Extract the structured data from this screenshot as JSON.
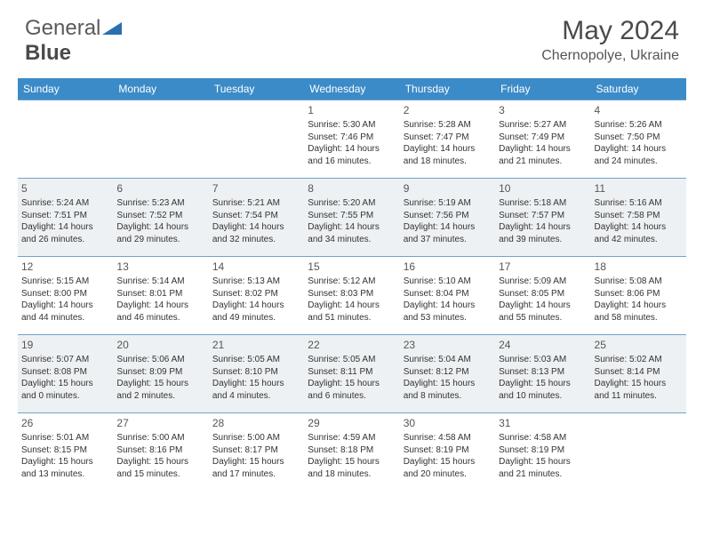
{
  "brand": {
    "part1": "General",
    "part2": "Blue"
  },
  "title": "May 2024",
  "location": "Chernopolye, Ukraine",
  "colors": {
    "header_bg": "#3b8bc8",
    "row_alt_bg": "#eef1f3",
    "border": "#6fa3c9",
    "logo_accent": "#2a6fb0"
  },
  "weekdays": [
    "Sunday",
    "Monday",
    "Tuesday",
    "Wednesday",
    "Thursday",
    "Friday",
    "Saturday"
  ],
  "weeks": [
    {
      "alt": false,
      "days": [
        null,
        null,
        null,
        {
          "n": "1",
          "sr": "Sunrise: 5:30 AM",
          "ss": "Sunset: 7:46 PM",
          "dl": "Daylight: 14 hours and 16 minutes."
        },
        {
          "n": "2",
          "sr": "Sunrise: 5:28 AM",
          "ss": "Sunset: 7:47 PM",
          "dl": "Daylight: 14 hours and 18 minutes."
        },
        {
          "n": "3",
          "sr": "Sunrise: 5:27 AM",
          "ss": "Sunset: 7:49 PM",
          "dl": "Daylight: 14 hours and 21 minutes."
        },
        {
          "n": "4",
          "sr": "Sunrise: 5:26 AM",
          "ss": "Sunset: 7:50 PM",
          "dl": "Daylight: 14 hours and 24 minutes."
        }
      ]
    },
    {
      "alt": true,
      "days": [
        {
          "n": "5",
          "sr": "Sunrise: 5:24 AM",
          "ss": "Sunset: 7:51 PM",
          "dl": "Daylight: 14 hours and 26 minutes."
        },
        {
          "n": "6",
          "sr": "Sunrise: 5:23 AM",
          "ss": "Sunset: 7:52 PM",
          "dl": "Daylight: 14 hours and 29 minutes."
        },
        {
          "n": "7",
          "sr": "Sunrise: 5:21 AM",
          "ss": "Sunset: 7:54 PM",
          "dl": "Daylight: 14 hours and 32 minutes."
        },
        {
          "n": "8",
          "sr": "Sunrise: 5:20 AM",
          "ss": "Sunset: 7:55 PM",
          "dl": "Daylight: 14 hours and 34 minutes."
        },
        {
          "n": "9",
          "sr": "Sunrise: 5:19 AM",
          "ss": "Sunset: 7:56 PM",
          "dl": "Daylight: 14 hours and 37 minutes."
        },
        {
          "n": "10",
          "sr": "Sunrise: 5:18 AM",
          "ss": "Sunset: 7:57 PM",
          "dl": "Daylight: 14 hours and 39 minutes."
        },
        {
          "n": "11",
          "sr": "Sunrise: 5:16 AM",
          "ss": "Sunset: 7:58 PM",
          "dl": "Daylight: 14 hours and 42 minutes."
        }
      ]
    },
    {
      "alt": false,
      "days": [
        {
          "n": "12",
          "sr": "Sunrise: 5:15 AM",
          "ss": "Sunset: 8:00 PM",
          "dl": "Daylight: 14 hours and 44 minutes."
        },
        {
          "n": "13",
          "sr": "Sunrise: 5:14 AM",
          "ss": "Sunset: 8:01 PM",
          "dl": "Daylight: 14 hours and 46 minutes."
        },
        {
          "n": "14",
          "sr": "Sunrise: 5:13 AM",
          "ss": "Sunset: 8:02 PM",
          "dl": "Daylight: 14 hours and 49 minutes."
        },
        {
          "n": "15",
          "sr": "Sunrise: 5:12 AM",
          "ss": "Sunset: 8:03 PM",
          "dl": "Daylight: 14 hours and 51 minutes."
        },
        {
          "n": "16",
          "sr": "Sunrise: 5:10 AM",
          "ss": "Sunset: 8:04 PM",
          "dl": "Daylight: 14 hours and 53 minutes."
        },
        {
          "n": "17",
          "sr": "Sunrise: 5:09 AM",
          "ss": "Sunset: 8:05 PM",
          "dl": "Daylight: 14 hours and 55 minutes."
        },
        {
          "n": "18",
          "sr": "Sunrise: 5:08 AM",
          "ss": "Sunset: 8:06 PM",
          "dl": "Daylight: 14 hours and 58 minutes."
        }
      ]
    },
    {
      "alt": true,
      "days": [
        {
          "n": "19",
          "sr": "Sunrise: 5:07 AM",
          "ss": "Sunset: 8:08 PM",
          "dl": "Daylight: 15 hours and 0 minutes."
        },
        {
          "n": "20",
          "sr": "Sunrise: 5:06 AM",
          "ss": "Sunset: 8:09 PM",
          "dl": "Daylight: 15 hours and 2 minutes."
        },
        {
          "n": "21",
          "sr": "Sunrise: 5:05 AM",
          "ss": "Sunset: 8:10 PM",
          "dl": "Daylight: 15 hours and 4 minutes."
        },
        {
          "n": "22",
          "sr": "Sunrise: 5:05 AM",
          "ss": "Sunset: 8:11 PM",
          "dl": "Daylight: 15 hours and 6 minutes."
        },
        {
          "n": "23",
          "sr": "Sunrise: 5:04 AM",
          "ss": "Sunset: 8:12 PM",
          "dl": "Daylight: 15 hours and 8 minutes."
        },
        {
          "n": "24",
          "sr": "Sunrise: 5:03 AM",
          "ss": "Sunset: 8:13 PM",
          "dl": "Daylight: 15 hours and 10 minutes."
        },
        {
          "n": "25",
          "sr": "Sunrise: 5:02 AM",
          "ss": "Sunset: 8:14 PM",
          "dl": "Daylight: 15 hours and 11 minutes."
        }
      ]
    },
    {
      "alt": false,
      "days": [
        {
          "n": "26",
          "sr": "Sunrise: 5:01 AM",
          "ss": "Sunset: 8:15 PM",
          "dl": "Daylight: 15 hours and 13 minutes."
        },
        {
          "n": "27",
          "sr": "Sunrise: 5:00 AM",
          "ss": "Sunset: 8:16 PM",
          "dl": "Daylight: 15 hours and 15 minutes."
        },
        {
          "n": "28",
          "sr": "Sunrise: 5:00 AM",
          "ss": "Sunset: 8:17 PM",
          "dl": "Daylight: 15 hours and 17 minutes."
        },
        {
          "n": "29",
          "sr": "Sunrise: 4:59 AM",
          "ss": "Sunset: 8:18 PM",
          "dl": "Daylight: 15 hours and 18 minutes."
        },
        {
          "n": "30",
          "sr": "Sunrise: 4:58 AM",
          "ss": "Sunset: 8:19 PM",
          "dl": "Daylight: 15 hours and 20 minutes."
        },
        {
          "n": "31",
          "sr": "Sunrise: 4:58 AM",
          "ss": "Sunset: 8:19 PM",
          "dl": "Daylight: 15 hours and 21 minutes."
        },
        null
      ]
    }
  ]
}
